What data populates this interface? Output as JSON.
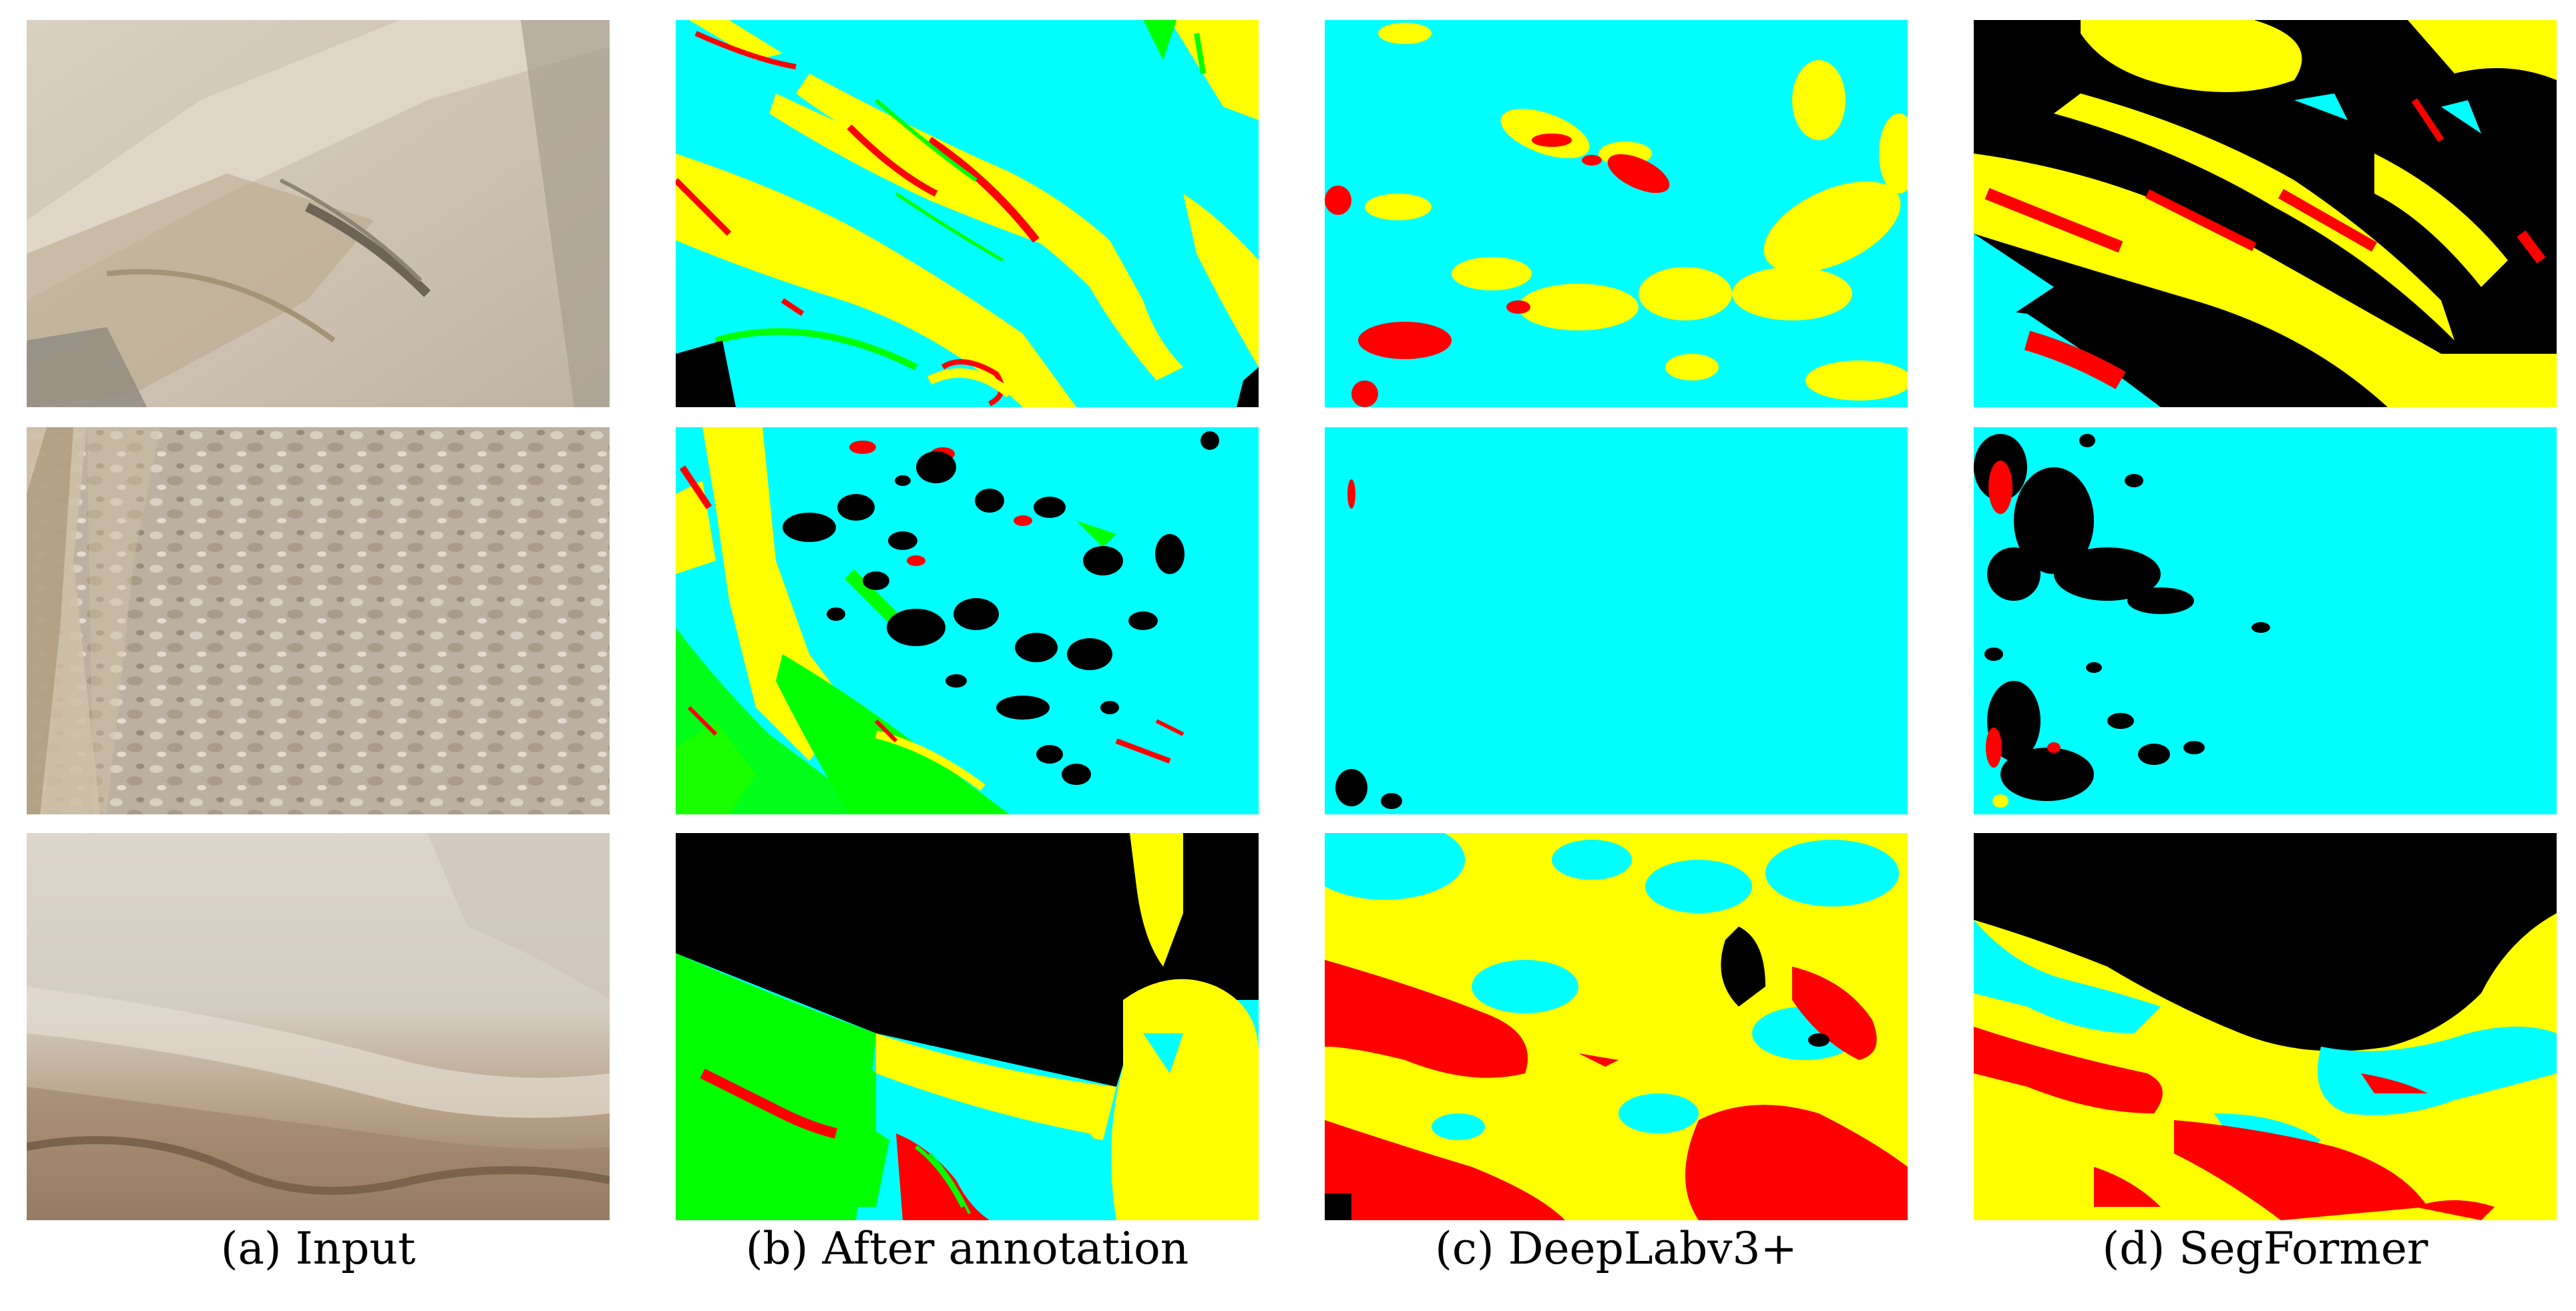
{
  "columns": [
    {
      "label": "(a) Input"
    },
    {
      "label": "(b) After annotation"
    },
    {
      "label": "(c) DeepLabv3+"
    },
    {
      "label": "(d) SegFormer"
    }
  ],
  "segmentation_class_colors": [
    "#00ffff",
    "#ffff00",
    "#ff0000",
    "#00ff00",
    "#000000"
  ],
  "rows": 3
}
